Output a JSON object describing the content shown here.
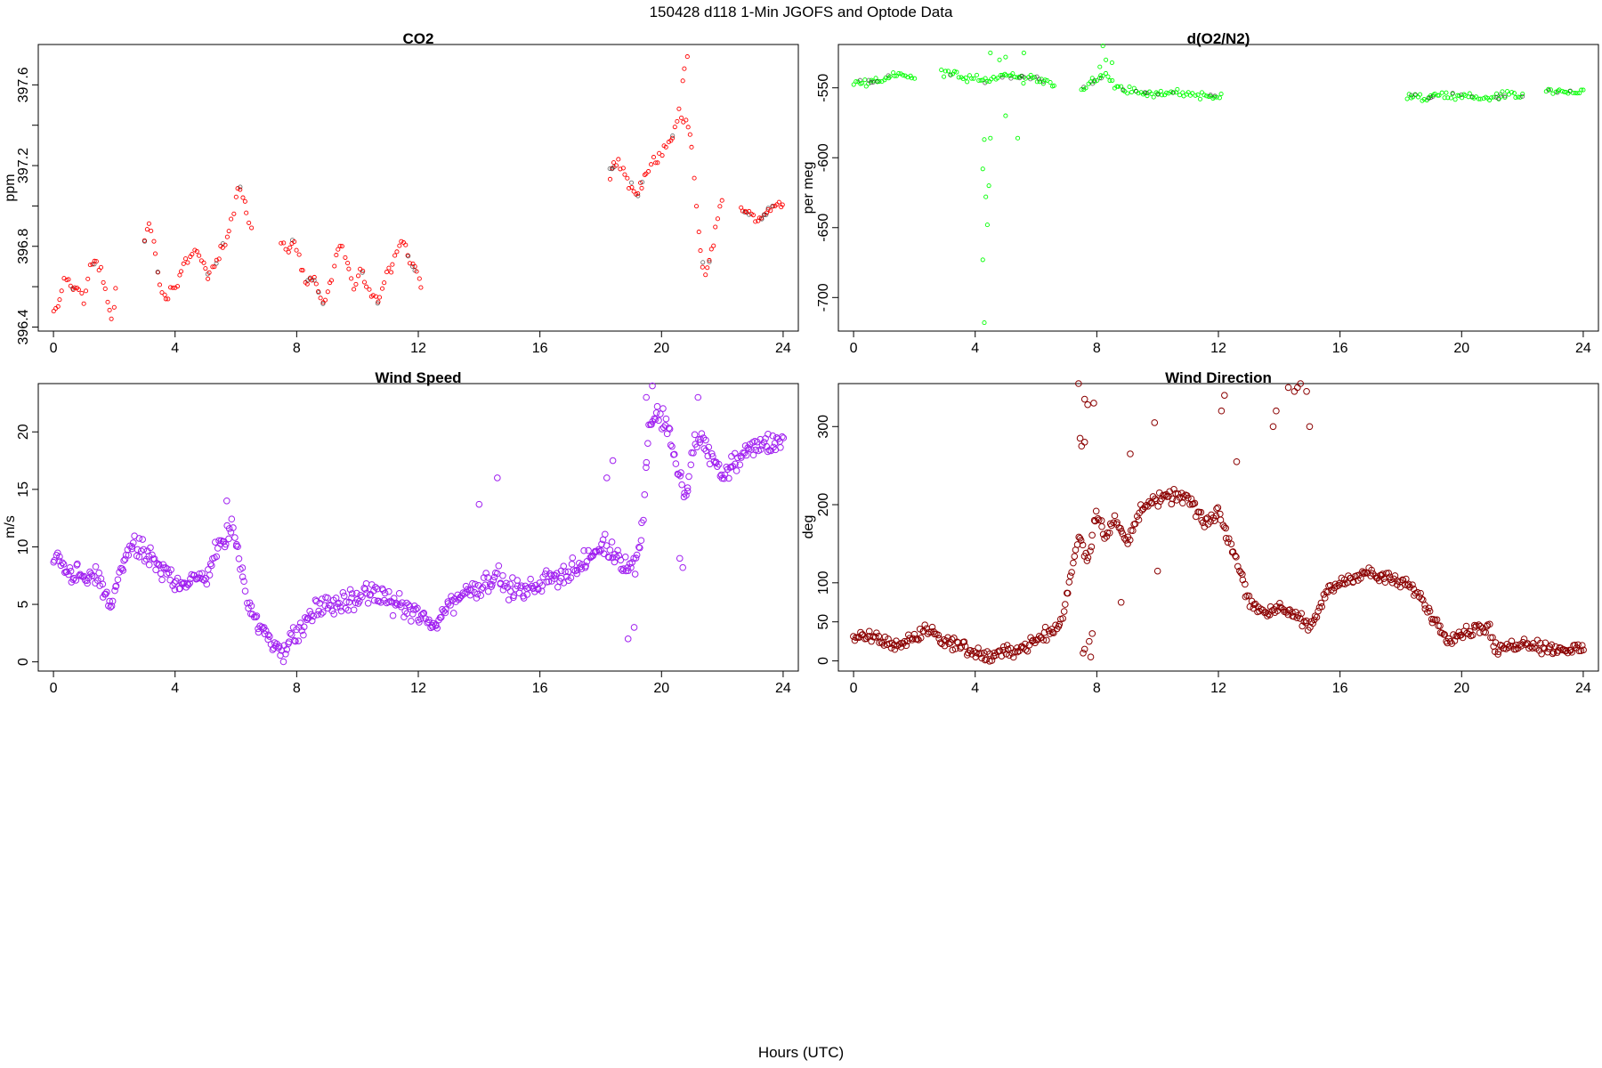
{
  "figure": {
    "title": "150428   d118   1-Min  JGOFS and Optode Data",
    "xlabel": "Hours (UTC)"
  },
  "chart_data": [
    {
      "type": "scatter",
      "title": "CO2",
      "ylabel": "ppm",
      "color": "#ff0000",
      "xlim": [
        -0.5,
        24.5
      ],
      "ylim": [
        396.38,
        397.8
      ],
      "xticks": [
        0,
        4,
        8,
        12,
        16,
        20,
        24
      ],
      "yticks": [
        396.4,
        396.8,
        397.2,
        397.6
      ],
      "ytick_labels": [
        "396.4",
        "396.8",
        "397.2",
        "397.6"
      ],
      "minor_yticks": [
        396.6,
        397.0,
        397.4
      ],
      "segments": [
        {
          "x": [
            0.0,
            0.2,
            0.4,
            0.6,
            0.8,
            1.0,
            1.2,
            1.4,
            1.6,
            1.8,
            1.95,
            2.05
          ],
          "y": [
            396.47,
            396.52,
            396.66,
            396.58,
            396.62,
            396.52,
            396.7,
            396.72,
            396.66,
            396.5,
            396.44,
            396.6
          ],
          "noise": 0.03,
          "density": 14
        },
        {
          "x": [
            3.0,
            3.15,
            3.3,
            3.5,
            3.7,
            3.9,
            4.1,
            4.3,
            4.5,
            4.7,
            4.9,
            5.1,
            5.3,
            5.5,
            5.7,
            5.9,
            6.1,
            6.3,
            6.5
          ],
          "y": [
            396.84,
            396.92,
            396.82,
            396.6,
            396.53,
            396.58,
            396.62,
            396.7,
            396.76,
            396.79,
            396.72,
            396.65,
            396.7,
            396.78,
            396.85,
            396.96,
            397.12,
            397.0,
            396.88
          ],
          "noise": 0.035,
          "density": 14
        },
        {
          "x": [
            7.5,
            7.7,
            7.9,
            8.1,
            8.3,
            8.5,
            8.7,
            8.9,
            9.1,
            9.3,
            9.5,
            9.7,
            9.9,
            10.1,
            10.3,
            10.5,
            10.7,
            10.9,
            11.1,
            11.3,
            11.5,
            11.7,
            11.9,
            12.1
          ],
          "y": [
            396.82,
            396.76,
            396.84,
            396.72,
            396.62,
            396.66,
            396.58,
            396.5,
            396.62,
            396.76,
            396.8,
            396.68,
            396.58,
            396.7,
            396.6,
            396.55,
            396.52,
            396.64,
            396.7,
            396.78,
            396.84,
            396.74,
            396.68,
            396.62
          ],
          "noise": 0.04,
          "density": 14
        },
        {
          "x": [
            18.3,
            18.6,
            18.9,
            19.2,
            19.5,
            19.8,
            20.1,
            20.4,
            20.6,
            20.8,
            21.0,
            21.2,
            21.4,
            21.6,
            21.8,
            22.0
          ],
          "y": [
            397.18,
            397.22,
            397.12,
            397.05,
            397.18,
            397.22,
            397.28,
            397.36,
            397.48,
            397.42,
            397.3,
            396.88,
            396.66,
            396.74,
            396.9,
            397.05
          ],
          "noise": 0.05,
          "density": 14
        },
        {
          "x": [
            22.6,
            22.9,
            23.2,
            23.5,
            23.8,
            24.0
          ],
          "y": [
            396.98,
            396.96,
            396.92,
            396.98,
            397.02,
            397.0
          ],
          "noise": 0.025,
          "density": 14
        }
      ],
      "outliers": [
        [
          20.85,
          397.74
        ],
        [
          20.75,
          397.68
        ],
        [
          20.7,
          397.62
        ]
      ]
    },
    {
      "type": "scatter",
      "title": "d(O2/N2)",
      "ylabel": "per meg",
      "color": "#00ff00",
      "xlim": [
        -0.5,
        24.5
      ],
      "ylim": [
        -724,
        -519
      ],
      "xticks": [
        0,
        4,
        8,
        12,
        16,
        20,
        24
      ],
      "yticks": [
        -700,
        -650,
        -600,
        -550
      ],
      "ytick_labels": [
        "-700",
        "-650",
        "-600",
        "-550"
      ],
      "minor_yticks": [],
      "segments": [
        {
          "x": [
            0.0,
            0.5,
            1.0,
            1.5,
            2.0
          ],
          "y": [
            -547,
            -545,
            -544,
            -540,
            -542
          ],
          "noise": 4,
          "density": 14
        },
        {
          "x": [
            2.9,
            3.5,
            4.0,
            4.5,
            5.0,
            5.5,
            6.0,
            6.6
          ],
          "y": [
            -540,
            -542,
            -545,
            -544,
            -540,
            -543,
            -544,
            -546
          ],
          "noise": 5,
          "density": 14
        },
        {
          "x": [
            7.5,
            8.0,
            8.3,
            8.6,
            9.0,
            9.5,
            10.0,
            10.5,
            11.0,
            11.5,
            12.1
          ],
          "y": [
            -550,
            -545,
            -540,
            -548,
            -552,
            -554,
            -555,
            -553,
            -554,
            -556,
            -555
          ],
          "noise": 4,
          "density": 14
        },
        {
          "x": [
            18.2,
            18.6,
            19.0,
            19.5,
            20.0,
            20.5,
            21.0,
            21.5,
            22.0
          ],
          "y": [
            -556,
            -557,
            -557,
            -555,
            -555,
            -558,
            -557,
            -555,
            -556
          ],
          "noise": 4,
          "density": 14
        },
        {
          "x": [
            22.8,
            23.2,
            23.6,
            24.0
          ],
          "y": [
            -552,
            -553,
            -553,
            -553
          ],
          "noise": 3,
          "density": 14
        }
      ],
      "outliers": [
        [
          4.3,
          -718
        ],
        [
          4.25,
          -673
        ],
        [
          4.4,
          -648
        ],
        [
          4.35,
          -628
        ],
        [
          4.45,
          -620
        ],
        [
          4.25,
          -608
        ],
        [
          4.5,
          -586
        ],
        [
          4.3,
          -587
        ],
        [
          4.5,
          -525
        ],
        [
          4.8,
          -530
        ],
        [
          5.0,
          -528
        ],
        [
          5.6,
          -525
        ],
        [
          5.4,
          -586
        ],
        [
          5.0,
          -570
        ],
        [
          8.2,
          -520
        ],
        [
          8.3,
          -530
        ],
        [
          8.1,
          -535
        ],
        [
          8.5,
          -532
        ]
      ]
    },
    {
      "type": "scatter",
      "title": "Wind Speed",
      "ylabel": "m/s",
      "color": "#a020f0",
      "xlim": [
        -0.5,
        24.5
      ],
      "ylim": [
        -0.8,
        24.2
      ],
      "xticks": [
        0,
        4,
        8,
        12,
        16,
        20,
        24
      ],
      "yticks": [
        0,
        5,
        10,
        15,
        20
      ],
      "ytick_labels": [
        "0",
        "5",
        "10",
        "15",
        "20"
      ],
      "minor_yticks": [],
      "segments": [
        {
          "x": [
            0.0,
            0.5,
            1.0,
            1.5,
            1.9,
            2.2,
            2.5,
            3.0,
            3.5,
            4.0,
            4.5,
            5.0,
            5.3,
            5.6,
            5.9,
            6.2,
            6.5,
            6.8,
            7.2,
            7.6,
            8.0,
            8.3,
            8.6,
            9.0,
            9.5,
            10.0,
            10.5,
            11.0,
            11.5,
            12.0,
            12.5,
            13.0,
            13.5,
            14.0,
            14.5,
            15.0,
            15.5,
            16.0,
            16.5,
            17.0,
            17.5,
            18.0,
            18.5,
            19.0,
            19.3,
            19.6,
            19.9,
            20.2,
            20.5,
            20.8,
            21.1,
            21.4,
            21.7,
            22.0,
            22.5,
            23.0,
            23.5,
            24.0
          ],
          "y": [
            9.0,
            8.0,
            7.2,
            7.3,
            4.5,
            8.0,
            10.0,
            9.5,
            8.0,
            7.2,
            6.8,
            7.5,
            9.5,
            10.5,
            11.5,
            8.0,
            4.5,
            3.0,
            1.5,
            1.0,
            2.5,
            3.5,
            4.5,
            5.0,
            5.0,
            5.5,
            6.0,
            5.5,
            4.8,
            4.0,
            3.0,
            5.0,
            6.0,
            6.5,
            7.5,
            6.5,
            6.0,
            6.8,
            7.5,
            8.0,
            8.5,
            10.0,
            9.5,
            8.0,
            10.0,
            20.5,
            21.5,
            20.5,
            17.0,
            14.0,
            19.5,
            19.0,
            17.5,
            16.5,
            17.5,
            18.5,
            19.0,
            19.5
          ],
          "noise": 1.4,
          "density": 25
        }
      ],
      "outliers": [
        [
          19.7,
          24.0
        ],
        [
          19.5,
          23.0
        ],
        [
          21.2,
          23.0
        ],
        [
          14.6,
          16.0
        ],
        [
          14.0,
          13.7
        ],
        [
          20.6,
          9.0
        ],
        [
          20.7,
          8.2
        ],
        [
          18.9,
          2.0
        ],
        [
          19.1,
          3.0
        ],
        [
          5.7,
          14.0
        ],
        [
          18.4,
          17.5
        ],
        [
          18.2,
          16.0
        ]
      ]
    },
    {
      "type": "scatter",
      "title": "Wind Direction",
      "ylabel": "deg",
      "color": "#8b0000",
      "xlim": [
        -0.5,
        24.5
      ],
      "ylim": [
        -13,
        355
      ],
      "xticks": [
        0,
        4,
        8,
        12,
        16,
        20,
        24
      ],
      "yticks": [
        0,
        50,
        100,
        200,
        300
      ],
      "ytick_labels": [
        "0",
        "50",
        "100",
        "200",
        "300"
      ],
      "minor_yticks": [],
      "segments": [
        {
          "x": [
            0.0,
            0.5,
            1.0,
            1.5,
            2.0,
            2.5,
            3.0,
            3.5,
            4.0,
            4.5,
            5.0,
            5.5,
            6.0,
            6.5,
            6.8,
            7.1,
            7.4,
            7.7,
            8.0,
            8.3,
            8.6,
            9.0,
            9.5,
            10.0,
            10.5,
            11.0,
            11.5,
            12.0,
            12.5,
            13.0,
            13.5,
            14.0,
            14.5,
            15.0,
            15.5,
            16.0,
            16.5,
            17.0,
            17.5,
            18.0,
            18.5,
            19.0,
            19.5,
            20.0,
            20.5,
            20.9,
            21.1,
            21.5,
            22.0,
            22.5,
            23.0,
            23.5,
            24.0
          ],
          "y": [
            28,
            30,
            25,
            20,
            30,
            40,
            25,
            20,
            10,
            5,
            12,
            15,
            28,
            38,
            48,
            100,
            160,
            130,
            190,
            160,
            180,
            150,
            200,
            205,
            210,
            210,
            175,
            190,
            140,
            80,
            60,
            70,
            60,
            40,
            85,
            100,
            110,
            112,
            105,
            100,
            90,
            60,
            30,
            35,
            42,
            45,
            12,
            18,
            25,
            20,
            15,
            15,
            15
          ],
          "noise": 12,
          "density": 22
        }
      ],
      "outliers": [
        [
          4.1,
          360
        ],
        [
          4.3,
          360
        ],
        [
          4.5,
          360
        ],
        [
          4.6,
          360
        ],
        [
          7.4,
          355
        ],
        [
          7.6,
          335
        ],
        [
          7.7,
          328
        ],
        [
          7.9,
          330
        ],
        [
          7.5,
          275
        ],
        [
          7.45,
          285
        ],
        [
          7.6,
          280
        ],
        [
          7.55,
          10
        ],
        [
          7.6,
          15
        ],
        [
          7.8,
          5
        ],
        [
          7.75,
          25
        ],
        [
          7.85,
          35
        ],
        [
          14.3,
          350
        ],
        [
          14.5,
          345
        ],
        [
          14.6,
          350
        ],
        [
          14.7,
          355
        ],
        [
          14.9,
          345
        ],
        [
          15.0,
          300
        ],
        [
          13.8,
          300
        ],
        [
          13.9,
          320
        ],
        [
          12.1,
          320
        ],
        [
          12.2,
          340
        ],
        [
          12.6,
          255
        ],
        [
          9.9,
          305
        ],
        [
          9.1,
          265
        ],
        [
          10.0,
          115
        ],
        [
          8.8,
          75
        ]
      ]
    }
  ]
}
